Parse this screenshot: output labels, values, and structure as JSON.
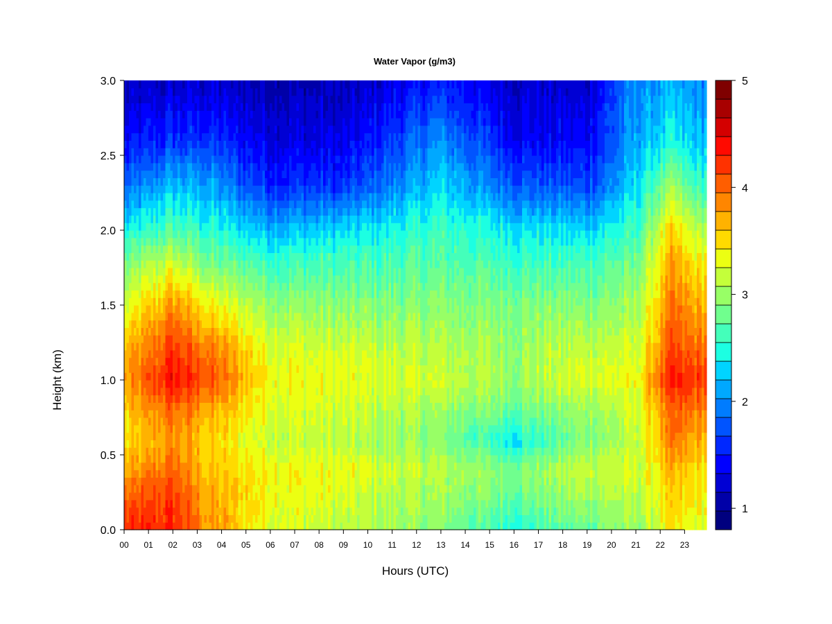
{
  "chart_data": {
    "type": "heatmap",
    "title": "Water Vapor (g/m3)",
    "xlabel": "Hours (UTC)",
    "ylabel": "Height (km)",
    "x_ticks": [
      "00",
      "01",
      "02",
      "03",
      "04",
      "05",
      "06",
      "07",
      "08",
      "09",
      "10",
      "11",
      "12",
      "13",
      "14",
      "15",
      "16",
      "17",
      "18",
      "19",
      "20",
      "21",
      "22",
      "23"
    ],
    "y_ticks": [
      "0.0",
      "0.5",
      "1.0",
      "1.5",
      "2.0",
      "2.5",
      "3.0"
    ],
    "xlim": [
      0,
      23.9
    ],
    "ylim": [
      0,
      3.0
    ],
    "colorbar": {
      "range": [
        0.8,
        5.0
      ],
      "ticks": [
        "1",
        "2",
        "3",
        "4",
        "5"
      ],
      "tick_values": [
        1,
        2,
        3,
        4,
        5
      ],
      "levels": [
        0.8,
        1.0,
        1.2,
        1.4,
        1.6,
        1.8,
        2.0,
        2.2,
        2.4,
        2.6,
        2.8,
        3.0,
        3.2,
        3.4,
        3.6,
        3.8,
        4.0,
        4.2,
        4.4,
        4.6,
        4.8,
        5.0
      ],
      "colors": [
        "#00007F",
        "#0000A8",
        "#0000D4",
        "#0000FF",
        "#0028FF",
        "#0054FF",
        "#007CFF",
        "#00A8FF",
        "#00D4FF",
        "#1CFFE2",
        "#44FFBA",
        "#70FF8E",
        "#98FF66",
        "#C4FF3A",
        "#ECFF12",
        "#FFDA00",
        "#FFB200",
        "#FF8600",
        "#FF5E00",
        "#FF3200",
        "#FF0A00",
        "#D40000",
        "#A80000",
        "#7F0000"
      ]
    },
    "heights_km": [
      0.0,
      0.1,
      0.2,
      0.3,
      0.4,
      0.5,
      0.6,
      0.7,
      0.8,
      0.9,
      1.0,
      1.1,
      1.2,
      1.3,
      1.4,
      1.5,
      1.6,
      1.7,
      1.8,
      1.9,
      2.0,
      2.1,
      2.2,
      2.3,
      2.4,
      2.5,
      2.6,
      2.7,
      2.8,
      2.9,
      3.0
    ],
    "times_utc_h": [
      0.0,
      0.5,
      1.0,
      1.5,
      2.0,
      2.5,
      3.0,
      3.5,
      4.0,
      4.5,
      5.0,
      5.5,
      6.0,
      6.5,
      7.0,
      7.5,
      8.0,
      8.5,
      9.0,
      9.5,
      10.0,
      10.5,
      11.0,
      11.5,
      12.0,
      12.5,
      13.0,
      13.5,
      14.0,
      14.5,
      15.0,
      15.5,
      16.0,
      16.5,
      17.0,
      17.5,
      18.0,
      18.5,
      19.0,
      19.5,
      20.0,
      20.5,
      21.0,
      21.5,
      22.0,
      22.5,
      23.0,
      23.5,
      23.9
    ],
    "profiles_g_m3": {
      "by_height_km": [
        0.0,
        0.2,
        0.4,
        0.6,
        0.8,
        1.0,
        1.2,
        1.5,
        1.8,
        2.0,
        2.3,
        2.6,
        3.0
      ],
      "00h": [
        4.2,
        4.0,
        3.7,
        3.4,
        3.5,
        3.7,
        3.6,
        3.2,
        2.8,
        2.4,
        1.8,
        1.4,
        1.1
      ],
      "02h": [
        4.3,
        4.2,
        4.0,
        3.8,
        4.0,
        4.4,
        4.2,
        3.8,
        3.2,
        2.7,
        2.2,
        1.6,
        1.2
      ],
      "03.5h": [
        3.8,
        3.7,
        3.6,
        3.5,
        3.7,
        4.1,
        3.9,
        3.4,
        2.8,
        2.5,
        2.1,
        1.6,
        1.2
      ],
      "06h": [
        3.3,
        3.4,
        3.4,
        3.2,
        3.3,
        3.4,
        3.3,
        3.0,
        2.6,
        2.2,
        1.6,
        1.3,
        1.1
      ],
      "09h": [
        3.1,
        3.2,
        3.3,
        3.1,
        3.2,
        3.3,
        3.2,
        2.9,
        2.6,
        2.3,
        1.6,
        1.3,
        1.1
      ],
      "13h": [
        2.9,
        3.0,
        3.1,
        2.9,
        3.0,
        3.2,
        3.1,
        2.9,
        2.7,
        2.6,
        2.3,
        2.0,
        1.5
      ],
      "16h": [
        2.5,
        2.8,
        2.9,
        2.4,
        2.8,
        3.0,
        3.0,
        2.9,
        2.6,
        2.4,
        1.8,
        1.4,
        1.2
      ],
      "19h": [
        2.8,
        3.0,
        3.2,
        2.9,
        3.0,
        3.3,
        3.2,
        2.9,
        2.6,
        2.3,
        1.7,
        1.4,
        1.2
      ],
      "21h": [
        3.0,
        3.1,
        3.2,
        3.1,
        3.2,
        3.3,
        3.2,
        3.0,
        2.8,
        2.6,
        2.3,
        2.1,
        2.0
      ],
      "22.5h": [
        3.4,
        3.5,
        3.6,
        3.9,
        4.0,
        4.3,
        4.1,
        3.9,
        3.7,
        3.5,
        3.0,
        2.4,
        2.1
      ],
      "23.5h": [
        3.2,
        3.4,
        3.5,
        3.7,
        3.9,
        4.2,
        4.0,
        3.7,
        3.4,
        3.1,
        2.6,
        2.2,
        2.0
      ]
    }
  }
}
